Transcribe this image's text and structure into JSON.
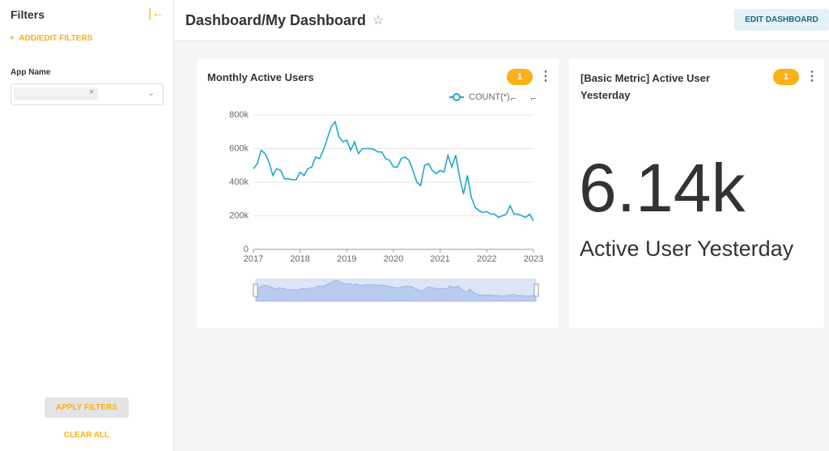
{
  "sidebar": {
    "title": "Filters",
    "add_filters": "ADD/EDIT FILTERS",
    "filter_label": "App Name",
    "apply": "APPLY FILTERS",
    "clear": "CLEAR ALL"
  },
  "header": {
    "title": "Dashboard/My Dashboard",
    "edit": "EDIT DASHBOARD"
  },
  "chart_card": {
    "title": "Monthly Active Users",
    "filter_badge": 1,
    "chart_data": {
      "type": "line",
      "x": [
        2017,
        2017.083,
        2017.167,
        2017.25,
        2017.333,
        2017.417,
        2017.5,
        2017.583,
        2017.667,
        2017.75,
        2017.833,
        2017.917,
        2018,
        2018.083,
        2018.167,
        2018.25,
        2018.333,
        2018.417,
        2018.5,
        2018.583,
        2018.667,
        2018.75,
        2018.833,
        2018.917,
        2019,
        2019.083,
        2019.167,
        2019.25,
        2019.333,
        2019.417,
        2019.5,
        2019.583,
        2019.667,
        2019.75,
        2019.833,
        2019.917,
        2020,
        2020.083,
        2020.167,
        2020.25,
        2020.333,
        2020.417,
        2020.5,
        2020.583,
        2020.667,
        2020.75,
        2020.833,
        2020.917,
        2021,
        2021.083,
        2021.167,
        2021.25,
        2021.333,
        2021.417,
        2021.5,
        2021.583,
        2021.667,
        2021.75,
        2021.833,
        2021.917,
        2022,
        2022.083,
        2022.167,
        2022.25,
        2022.333,
        2022.417,
        2022.5,
        2022.583,
        2022.667,
        2022.75,
        2022.833,
        2022.917,
        2023
      ],
      "series": [
        {
          "name": "COUNT(*)",
          "color": "#1fa8c9",
          "values": [
            480000,
            510000,
            590000,
            570000,
            520000,
            440000,
            480000,
            470000,
            420000,
            420000,
            415000,
            415000,
            460000,
            440000,
            480000,
            490000,
            550000,
            540000,
            590000,
            660000,
            730000,
            760000,
            670000,
            640000,
            650000,
            590000,
            640000,
            570000,
            600000,
            600000,
            600000,
            595000,
            580000,
            580000,
            540000,
            530000,
            490000,
            490000,
            540000,
            550000,
            530000,
            470000,
            400000,
            380000,
            500000,
            510000,
            470000,
            450000,
            470000,
            460000,
            560000,
            490000,
            560000,
            430000,
            330000,
            440000,
            310000,
            250000,
            230000,
            220000,
            225000,
            210000,
            210000,
            190000,
            200000,
            210000,
            260000,
            210000,
            210000,
            200000,
            190000,
            210000,
            170000
          ]
        }
      ],
      "xlim": [
        2017,
        2023
      ],
      "xticks": [
        2017,
        2018,
        2019,
        2020,
        2021,
        2022,
        2023
      ],
      "ylim": [
        0,
        800000
      ],
      "yticks": [
        0,
        {
          "value": 200000,
          "label": "200k"
        },
        {
          "value": 400000,
          "label": "400k"
        },
        {
          "value": 600000,
          "label": "600k"
        },
        {
          "value": 800000,
          "label": "800k"
        }
      ],
      "grid": true
    }
  },
  "metric_card": {
    "title": "[Basic Metric] Active User Yesterday",
    "filter_badge": 1,
    "value": "6.14k",
    "subtitle": "Active User Yesterday"
  }
}
